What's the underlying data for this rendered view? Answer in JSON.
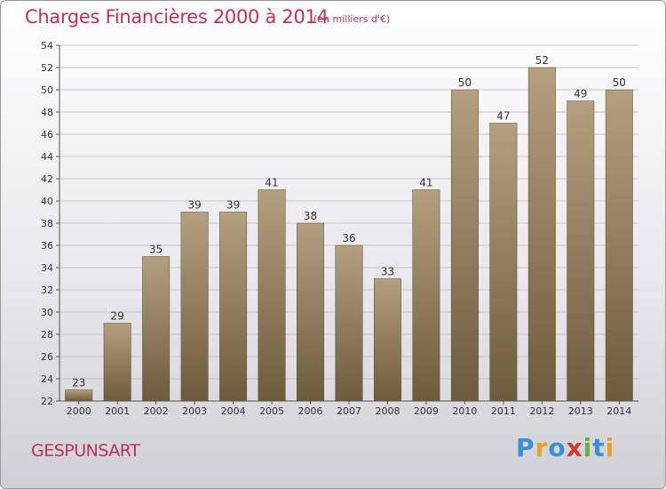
{
  "header": {
    "title": "Charges Financières 2000 à 2014",
    "subtitle": "(en milliers d'€)"
  },
  "footer": {
    "commune": "GESPUNSART",
    "logo": "Proxiti",
    "logo_colors": [
      "#3a8fd6",
      "#e8a21c",
      "#3a8fd6",
      "#d9392b",
      "#6ab23e",
      "#3a8fd6",
      "#e8a21c"
    ]
  },
  "colors": {
    "bar_top": "#b3a07f",
    "bar_bottom": "#6d5b3d",
    "grid": "#c8c8c8"
  },
  "chart_data": {
    "type": "bar",
    "categories": [
      "2000",
      "2001",
      "2002",
      "2003",
      "2004",
      "2005",
      "2006",
      "2007",
      "2008",
      "2009",
      "2010",
      "2011",
      "2012",
      "2013",
      "2014"
    ],
    "values": [
      23,
      29,
      35,
      39,
      39,
      41,
      38,
      36,
      33,
      41,
      50,
      47,
      52,
      49,
      50
    ],
    "ylim": [
      22,
      54
    ],
    "ytick_step": 2,
    "grid": true,
    "title": "Charges Financières 2000 à 2014",
    "xlabel": "",
    "ylabel": ""
  }
}
